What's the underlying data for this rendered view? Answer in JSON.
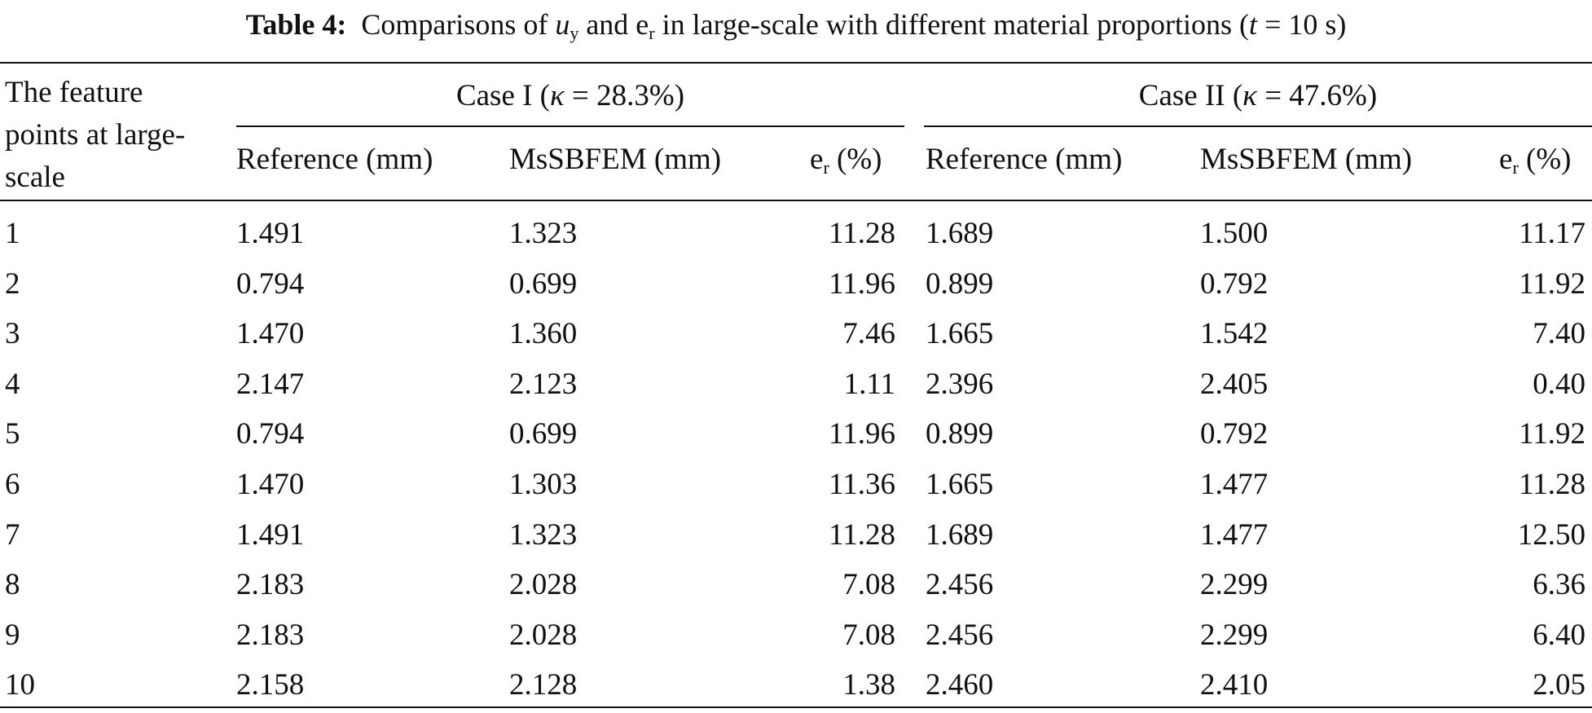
{
  "caption": {
    "label": "Table 4:",
    "parts": [
      "Comparisons of ",
      "u",
      "y",
      " and e",
      "r",
      " in large-scale with different material proportions (",
      "t",
      " = 10 s)"
    ]
  },
  "table": {
    "header": {
      "row_label": "The feature points at large-scale",
      "groups": [
        {
          "parts": [
            "Case I (",
            "κ",
            " = 28.3%)"
          ],
          "columns": [
            "Reference (mm)",
            "MsSBFEM (mm)"
          ],
          "error_parts": [
            "e",
            "r",
            " (%)"
          ]
        },
        {
          "parts": [
            "Case II (",
            "κ",
            " = 47.6%)"
          ],
          "columns": [
            "Reference (mm)",
            "MsSBFEM (mm)"
          ],
          "error_parts": [
            "e",
            "r",
            " (%)"
          ]
        }
      ]
    },
    "rows": [
      [
        "1",
        "1.491",
        "1.323",
        "11.28",
        "1.689",
        "1.500",
        "11.17"
      ],
      [
        "2",
        "0.794",
        "0.699",
        "11.96",
        "0.899",
        "0.792",
        "11.92"
      ],
      [
        "3",
        "1.470",
        "1.360",
        "7.46",
        "1.665",
        "1.542",
        "7.40"
      ],
      [
        "4",
        "2.147",
        "2.123",
        "1.11",
        "2.396",
        "2.405",
        "0.40"
      ],
      [
        "5",
        "0.794",
        "0.699",
        "11.96",
        "0.899",
        "0.792",
        "11.92"
      ],
      [
        "6",
        "1.470",
        "1.303",
        "11.36",
        "1.665",
        "1.477",
        "11.28"
      ],
      [
        "7",
        "1.491",
        "1.323",
        "11.28",
        "1.689",
        "1.477",
        "12.50"
      ],
      [
        "8",
        "2.183",
        "2.028",
        "7.08",
        "2.456",
        "2.299",
        "6.36"
      ],
      [
        "9",
        "2.183",
        "2.028",
        "7.08",
        "2.456",
        "2.299",
        "6.40"
      ],
      [
        "10",
        "2.158",
        "2.128",
        "1.38",
        "2.460",
        "2.410",
        "2.05"
      ]
    ]
  }
}
